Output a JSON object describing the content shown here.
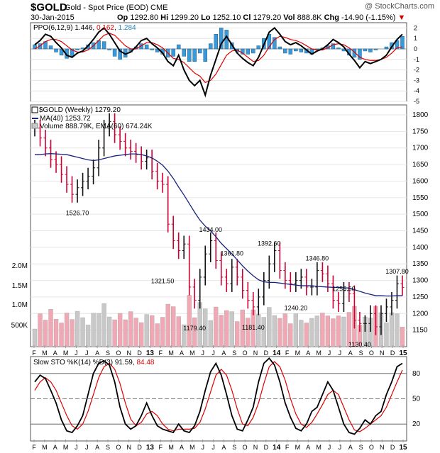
{
  "header": {
    "symbol": "$GOLD",
    "name": "Gold - Spot Price (EOD)",
    "exchange": "CME",
    "date": "30-Jan-2015",
    "watermark": "@ StockCharts.com",
    "open_label": "Op",
    "open": "1292.80",
    "high_label": "Hi",
    "high": "1299.20",
    "low_label": "Lo",
    "low": "1252.10",
    "close_label": "Cl",
    "close": "1279.20",
    "volume_label": "Vol",
    "volume": "888.8K",
    "change_label": "Chg",
    "change": "-14.90 (-1.15%)",
    "change_arrow": "▼"
  },
  "ppo_panel": {
    "label": "PPO(6,12,9)",
    "ppo": "1.446",
    "signal": "0.162",
    "hist": "1.284"
  },
  "price_panel": {
    "title": "$GOLD (Weekly)",
    "last": "1279.20",
    "ma_label": "MA(40)",
    "ma_value": "1253.72",
    "vol_label": "Volume 888.79K, EMA(60) 674.24K",
    "annotations": [
      "1526.70",
      "1321.50",
      "1434.00",
      "1179.40",
      "1361.80",
      "1181.40",
      "1392.60",
      "1240.20",
      "1346.80",
      "1255.60",
      "1130.40",
      "1307.80"
    ]
  },
  "sto_panel": {
    "label": "Slow STO %K(14) %D(3)",
    "k": "91.59",
    "d": "84.48"
  },
  "x_axis": [
    "F",
    "M",
    "A",
    "M",
    "J",
    "J",
    "A",
    "S",
    "O",
    "N",
    "D",
    "13",
    "F",
    "M",
    "A",
    "M",
    "J",
    "J",
    "A",
    "S",
    "O",
    "N",
    "D",
    "14",
    "F",
    "M",
    "A",
    "M",
    "J",
    "J",
    "A",
    "S",
    "O",
    "N",
    "D",
    "15"
  ],
  "colors": {
    "up": "#111111",
    "down": "#cc0033",
    "ma": "#1a237e",
    "ppo_line": "#000000",
    "signal_line": "#dd0000",
    "hist": "#3a9ad9",
    "volume": "#c8c8c8",
    "volume_down": "#f0a8b4",
    "k_line": "#000000",
    "d_line": "#dd0000"
  },
  "chart_data": [
    {
      "type": "line",
      "title": "PPO(6,12,9)",
      "ylim": [
        -5,
        2.5
      ],
      "y_ticks": [
        2,
        1,
        0,
        -1,
        -2,
        -3,
        -4,
        -5
      ],
      "series": [
        {
          "name": "PPO",
          "values": [
            0.4,
            0.8,
            1.4,
            1.2,
            0.6,
            0.1,
            -0.6,
            -0.8,
            -0.4,
            -0.2,
            0.3,
            0.9,
            1.6,
            2.0,
            1.4,
            0.6,
            -0.2,
            -0.5,
            -0.3,
            0.2,
            0.8,
            1.0,
            0.5,
            0.1,
            -0.4,
            -1.2,
            -1.6,
            -0.6,
            -2.0,
            -3.0,
            -3.5,
            -3.0,
            -4.4,
            -2.5,
            -1.0,
            0.5,
            1.2,
            0.4,
            -0.4,
            -0.9,
            -1.3,
            -1.6,
            -0.8,
            0.4,
            1.6,
            2.0,
            1.4,
            0.7,
            0.4,
            0.6,
            0.3,
            -0.1,
            -0.5,
            -0.2,
            0.0,
            0.4,
            0.9,
            0.6,
            0.2,
            -0.5,
            -1.1,
            -1.8,
            -1.2,
            -1.4,
            -1.2,
            -1.0,
            -0.6,
            0.2,
            0.9,
            1.4
          ]
        },
        {
          "name": "Signal",
          "values": [
            0.0,
            0.3,
            0.7,
            0.9,
            0.9,
            0.7,
            0.3,
            -0.1,
            -0.3,
            -0.3,
            -0.1,
            0.3,
            0.8,
            1.3,
            1.5,
            1.3,
            0.8,
            0.3,
            0.0,
            0.0,
            0.3,
            0.6,
            0.6,
            0.4,
            0.1,
            -0.4,
            -0.9,
            -1.0,
            -1.3,
            -1.8,
            -2.3,
            -2.6,
            -3.2,
            -3.0,
            -2.4,
            -1.5,
            -0.6,
            -0.2,
            -0.1,
            -0.4,
            -0.8,
            -1.2,
            -1.1,
            -0.6,
            0.2,
            0.9,
            1.2,
            1.1,
            0.9,
            0.8,
            0.6,
            0.3,
            0.0,
            -0.1,
            -0.1,
            0.1,
            0.4,
            0.5,
            0.4,
            0.1,
            -0.3,
            -0.8,
            -1.0,
            -1.1,
            -1.1,
            -1.0,
            -0.8,
            -0.4,
            0.1,
            0.2
          ]
        }
      ]
    },
    {
      "type": "bar",
      "title": "$GOLD (Weekly)",
      "ylabel": "Price",
      "ylim": [
        1100,
        1830
      ],
      "y_ticks": [
        1800,
        1750,
        1700,
        1650,
        1600,
        1550,
        1500,
        1450,
        1400,
        1350,
        1300,
        1250,
        1200,
        1150
      ],
      "volume_ticks": [
        "2.0M",
        "1.5M",
        "1.0M",
        "500K"
      ],
      "series": [
        {
          "name": "Close",
          "values": [
            1760,
            1730,
            1700,
            1665,
            1650,
            1620,
            1590,
            1560,
            1580,
            1600,
            1615,
            1640,
            1700,
            1760,
            1780,
            1740,
            1720,
            1700,
            1690,
            1680,
            1660,
            1670,
            1630,
            1600,
            1590,
            1470,
            1420,
            1390,
            1410,
            1280,
            1240,
            1310,
            1380,
            1420,
            1360,
            1310,
            1290,
            1340,
            1310,
            1270,
            1240,
            1220,
            1250,
            1300,
            1350,
            1390,
            1330,
            1300,
            1290,
            1300,
            1310,
            1280,
            1280,
            1330,
            1320,
            1290,
            1240,
            1230,
            1270,
            1260,
            1180,
            1170,
            1170,
            1200,
            1160,
            1200,
            1220,
            1240,
            1290,
            1279
          ]
        },
        {
          "name": "MA(40)",
          "values": [
            1680,
            1680,
            1682,
            1683,
            1682,
            1681,
            1680,
            1676,
            1672,
            1668,
            1664,
            1662,
            1664,
            1668,
            1672,
            1676,
            1678,
            1680,
            1682,
            1682,
            1680,
            1676,
            1670,
            1660,
            1648,
            1630,
            1608,
            1582,
            1558,
            1532,
            1506,
            1482,
            1464,
            1450,
            1432,
            1412,
            1396,
            1380,
            1362,
            1344,
            1328,
            1314,
            1302,
            1296,
            1294,
            1294,
            1292,
            1290,
            1288,
            1286,
            1284,
            1284,
            1284,
            1282,
            1281,
            1280,
            1279,
            1279,
            1278,
            1277,
            1272,
            1267,
            1262,
            1258,
            1254,
            1254,
            1253,
            1253,
            1254,
            1254
          ]
        }
      ]
    },
    {
      "type": "line",
      "title": "Slow STO %K(14) %D(3)",
      "ylim": [
        0,
        100
      ],
      "y_ticks": [
        80,
        50,
        20
      ],
      "series": [
        {
          "name": "%K",
          "values": [
            70,
            78,
            74,
            60,
            45,
            25,
            12,
            10,
            18,
            30,
            55,
            80,
            92,
            95,
            90,
            70,
            40,
            20,
            14,
            18,
            30,
            45,
            30,
            18,
            14,
            12,
            10,
            20,
            12,
            10,
            18,
            35,
            60,
            82,
            92,
            78,
            55,
            30,
            14,
            12,
            25,
            40,
            70,
            92,
            98,
            90,
            70,
            45,
            28,
            15,
            12,
            20,
            35,
            40,
            55,
            70,
            60,
            40,
            20,
            10,
            8,
            15,
            25,
            20,
            30,
            35,
            55,
            70,
            88,
            92
          ]
        },
        {
          "name": "%D",
          "values": [
            60,
            70,
            75,
            70,
            60,
            45,
            30,
            18,
            14,
            20,
            35,
            55,
            75,
            88,
            92,
            85,
            68,
            45,
            26,
            18,
            22,
            32,
            35,
            30,
            20,
            14,
            12,
            14,
            14,
            14,
            15,
            22,
            38,
            58,
            78,
            85,
            78,
            60,
            38,
            20,
            18,
            28,
            45,
            68,
            88,
            94,
            88,
            72,
            50,
            32,
            20,
            16,
            22,
            32,
            43,
            55,
            60,
            55,
            40,
            25,
            13,
            11,
            15,
            20,
            25,
            30,
            40,
            55,
            70,
            84
          ]
        }
      ]
    }
  ]
}
